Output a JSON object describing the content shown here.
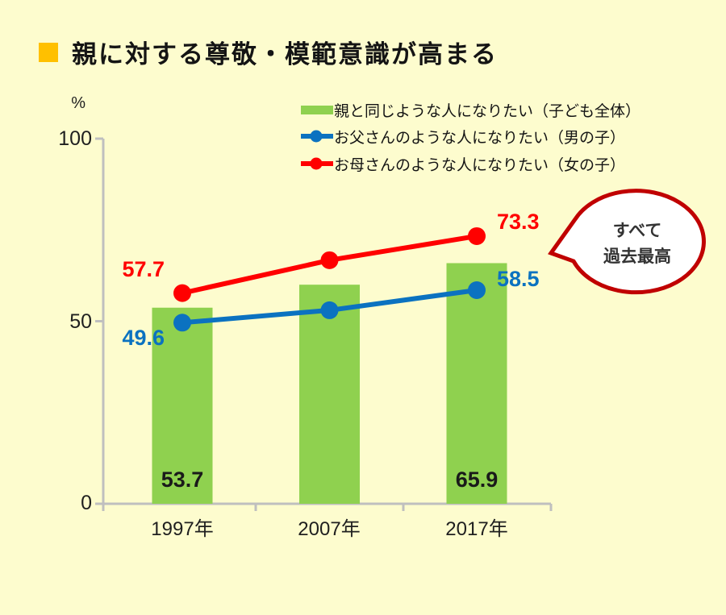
{
  "page": {
    "background": "#FDFCCE"
  },
  "title": {
    "text": "親に対する尊敬・模範意識が高まる",
    "bullet_color": "#FFC000"
  },
  "chart_data": {
    "type": "combo-bar-line",
    "categories": [
      "1997年",
      "2007年",
      "2017年"
    ],
    "unit_label": "%",
    "y_tick_labels": [
      "0",
      "50",
      "100"
    ],
    "y_ticks": [
      0,
      50,
      100
    ],
    "ylim": [
      0,
      100
    ],
    "grid": "off",
    "legend_position": "top-right",
    "axis_color": "#BFBFBF",
    "series": [
      {
        "name": "親と同じような人になりたい（子ども全体）",
        "chart_type": "bar",
        "color": "#8FD14F",
        "values": [
          53.7,
          60.0,
          65.9
        ],
        "labels": [
          "53.7",
          null,
          "65.9"
        ],
        "label_color": "#1a1a1a"
      },
      {
        "name": "お父さんのような人になりたい（男の子）",
        "chart_type": "line",
        "color": "#0B72C0",
        "values": [
          49.6,
          53.0,
          58.5
        ],
        "labels": [
          "49.6",
          null,
          "58.5"
        ],
        "label_color": "#0B72C0"
      },
      {
        "name": "お母さんのような人になりたい（女の子）",
        "chart_type": "line",
        "color": "#FF0000",
        "values": [
          57.7,
          66.7,
          73.3
        ],
        "labels": [
          "57.7",
          null,
          "73.3"
        ],
        "label_color": "#FF0000"
      }
    ]
  },
  "annotation": {
    "text_lines": [
      "すべて",
      "過去最高"
    ],
    "border_color": "#C00000",
    "fill": "#FFFFFF"
  }
}
